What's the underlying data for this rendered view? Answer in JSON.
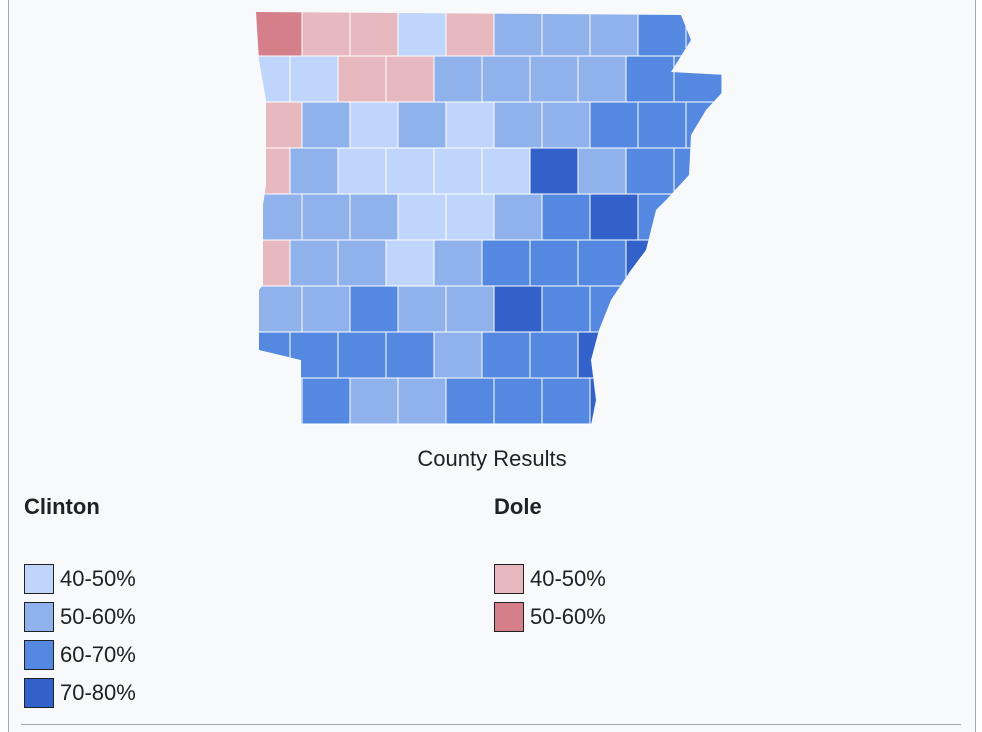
{
  "caption": "County Results",
  "legend": [
    {
      "title": "Clinton",
      "items": [
        {
          "label": "40-50%",
          "color": "#bfd5fb"
        },
        {
          "label": "50-60%",
          "color": "#8fb2ed"
        },
        {
          "label": "60-70%",
          "color": "#5588e0"
        },
        {
          "label": "70-80%",
          "color": "#3161c9"
        }
      ]
    },
    {
      "title": "Dole",
      "items": [
        {
          "label": "40-50%",
          "color": "#e8b8bf"
        },
        {
          "label": "50-60%",
          "color": "#d47f8a"
        }
      ]
    }
  ]
}
